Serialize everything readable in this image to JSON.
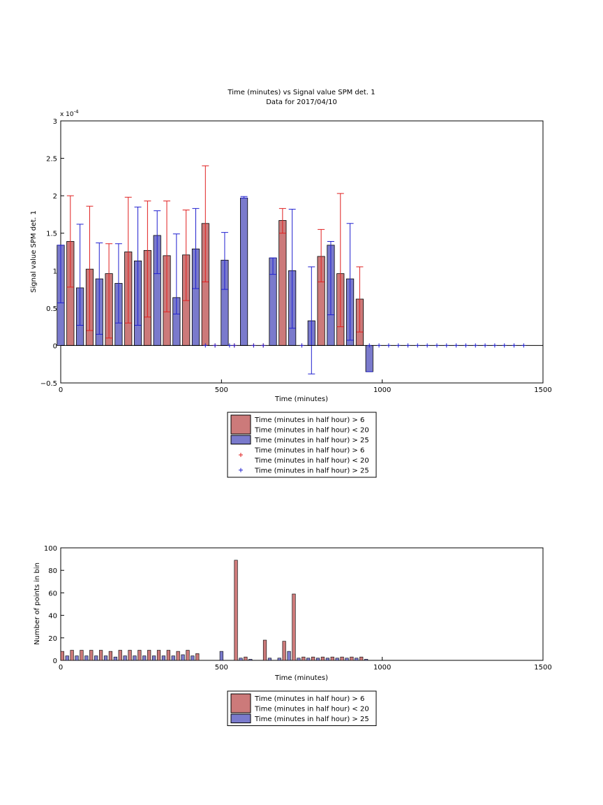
{
  "chart_data": [
    {
      "type": "bar",
      "title": "Time (minutes) vs Signal value SPM det. 1",
      "subtitle": "Data for 2017/04/10",
      "xlabel": "Time (minutes)",
      "ylabel": "Signal value SPM det. 1",
      "exponent_label": "x 10",
      "exponent_power": "-4",
      "xlim": [
        0,
        1500
      ],
      "ylim": [
        -0.5,
        3
      ],
      "xticks": [
        0,
        500,
        1000,
        1500
      ],
      "yticks": [
        -0.5,
        0,
        0.5,
        1,
        1.5,
        2,
        2.5,
        3
      ],
      "ytick_labels": [
        "−0.5",
        "0",
        "0.5",
        "1",
        "1.5",
        "2",
        "2.5",
        "3"
      ],
      "grid": false,
      "legend_position": "below",
      "colors": {
        "red": "#cc7a7a",
        "blue": "#7a7acc",
        "red_err": "#e02020",
        "blue_err": "#2020d0"
      },
      "series": [
        {
          "name": "Time (minutes in half hour) > 6\nTime (minutes in half hour) < 20",
          "x": [
            30,
            90,
            150,
            210,
            270,
            330,
            390,
            450,
            690,
            810,
            870,
            930
          ],
          "values": [
            1.39,
            1.02,
            0.96,
            1.25,
            1.27,
            1.2,
            1.21,
            1.63,
            1.67,
            1.19,
            0.96,
            0.62
          ],
          "err_low": [
            0.78,
            0.2,
            0.1,
            0.3,
            0.38,
            0.45,
            0.6,
            0.85,
            1.5,
            0.85,
            0.25,
            0.18
          ],
          "err_high": [
            2.0,
            1.86,
            1.36,
            1.98,
            1.93,
            1.93,
            1.81,
            2.4,
            1.83,
            1.55,
            2.03,
            1.05
          ]
        },
        {
          "name": "Time (minutes in half hour) > 25",
          "x": [
            0,
            60,
            120,
            180,
            240,
            300,
            360,
            420,
            510,
            570,
            660,
            720,
            780,
            840,
            900,
            960
          ],
          "values": [
            1.34,
            0.77,
            0.89,
            0.83,
            1.13,
            1.47,
            0.64,
            1.29,
            1.14,
            1.97,
            1.17,
            1.0,
            0.33,
            1.34,
            0.89,
            -0.35
          ],
          "err_low": [
            0.57,
            0.27,
            0.15,
            0.3,
            0.27,
            0.96,
            0.42,
            0.76,
            0.75,
            1.97,
            0.95,
            0.23,
            -0.38,
            0.41,
            0.07,
            -0.35
          ],
          "err_high": [
            1.34,
            1.62,
            1.37,
            1.36,
            1.85,
            1.8,
            1.49,
            1.83,
            1.51,
            1.99,
            1.17,
            1.82,
            1.05,
            1.39,
            1.63,
            -0.35
          ]
        },
        {
          "name": "Time (minutes in half hour) > 6\nTime (minutes in half hour) < 20",
          "marker": "+",
          "x": [
            480,
            540,
            600,
            630,
            750
          ],
          "values": [
            0,
            0,
            0,
            0,
            0
          ]
        },
        {
          "name": "Time (minutes in half hour) > 25",
          "marker": "+",
          "x": [
            450,
            480,
            525,
            540,
            600,
            630,
            750,
            960,
            990,
            1020,
            1050,
            1080,
            1110,
            1140,
            1170,
            1200,
            1230,
            1260,
            1290,
            1320,
            1350,
            1380,
            1410,
            1440
          ],
          "values": [
            0,
            0,
            0,
            0,
            0,
            0,
            0,
            0,
            0,
            0,
            0,
            0,
            0,
            0,
            0,
            0,
            0,
            0,
            0,
            0,
            0,
            0,
            0,
            0
          ]
        }
      ],
      "legend": [
        {
          "swatch": "red-bar",
          "lines": [
            "Time (minutes in half hour) > 6",
            "Time (minutes in half hour) < 20"
          ]
        },
        {
          "swatch": "blue-bar",
          "lines": [
            "Time (minutes in half hour) > 25"
          ]
        },
        {
          "swatch": "red-plus",
          "lines": [
            "Time (minutes in half hour) > 6",
            "Time (minutes in half hour) < 20"
          ]
        },
        {
          "swatch": "blue-plus",
          "lines": [
            "Time (minutes in half hour) > 25"
          ]
        }
      ]
    },
    {
      "type": "bar",
      "xlabel": "Time (minutes)",
      "ylabel": "Number of points in bin",
      "xlim": [
        0,
        1500
      ],
      "ylim": [
        0,
        100
      ],
      "xticks": [
        0,
        500,
        1000,
        1500
      ],
      "yticks": [
        0,
        20,
        40,
        60,
        80,
        100
      ],
      "grid": false,
      "legend_position": "below",
      "series": [
        {
          "name": "Time (minutes in half hour) > 6\nTime (minutes in half hour) < 20",
          "x": [
            0,
            30,
            60,
            90,
            120,
            150,
            180,
            210,
            240,
            270,
            300,
            330,
            360,
            390,
            420,
            540,
            570,
            630,
            690,
            720,
            750,
            780,
            810,
            840,
            870,
            900,
            930
          ],
          "values": [
            8,
            9,
            9,
            9,
            9,
            8,
            9,
            9,
            9,
            9,
            9,
            9,
            8,
            9,
            6,
            89,
            3,
            18,
            17,
            59,
            3,
            3,
            3,
            3,
            3,
            3,
            3
          ]
        },
        {
          "name": "Time (minutes in half hour) > 25",
          "x": [
            15,
            45,
            75,
            105,
            135,
            165,
            195,
            225,
            255,
            285,
            315,
            345,
            375,
            405,
            495,
            555,
            585,
            645,
            675,
            705,
            735,
            765,
            795,
            825,
            855,
            885,
            915,
            945
          ],
          "values": [
            4,
            4,
            4,
            4,
            4,
            3,
            4,
            4,
            4,
            4,
            4,
            4,
            5,
            4,
            8,
            2,
            1,
            2,
            2,
            8,
            2,
            2,
            2,
            2,
            2,
            2,
            2,
            1
          ]
        }
      ],
      "legend": [
        {
          "swatch": "red-bar",
          "lines": [
            "Time (minutes in half hour) > 6",
            "Time (minutes in half hour) < 20"
          ]
        },
        {
          "swatch": "blue-bar",
          "lines": [
            "Time (minutes in half hour) > 25"
          ]
        }
      ]
    }
  ]
}
